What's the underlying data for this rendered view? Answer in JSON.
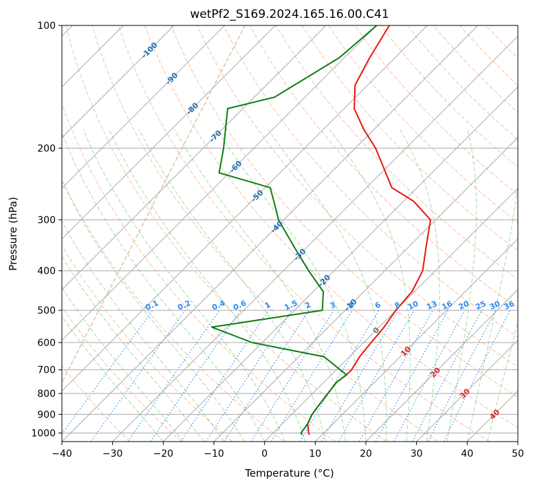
{
  "chart_data": {
    "type": "line",
    "title": "wetPf2_S169.2024.165.16.00.C41",
    "xlabel": "Temperature (°C)",
    "ylabel": "Pressure (hPa)",
    "xlim": [
      -40,
      50
    ],
    "ylim": [
      1050,
      100
    ],
    "y_scale": "log",
    "grid": true,
    "x_ticks": [
      -40,
      -30,
      -20,
      -10,
      0,
      10,
      20,
      30,
      40,
      50
    ],
    "x_tick_labels": [
      "−40",
      "−30",
      "−20",
      "−10",
      "0",
      "10",
      "20",
      "30",
      "40",
      "50"
    ],
    "y_ticks": [
      100,
      200,
      300,
      400,
      500,
      600,
      700,
      800,
      900,
      1000
    ],
    "y_tick_labels": [
      "100",
      "200",
      "300",
      "400",
      "500",
      "600",
      "700",
      "800",
      "900",
      "1000"
    ],
    "colors": {
      "temperature": "#e8140c",
      "dewpoint": "#0a7d12",
      "isotherm": "#a9a9a9",
      "dry_adiabat": "#f6a987",
      "moist_adiabat": "#8fd18f",
      "mixing_ratio": "#2b8cf0",
      "mixing_ratio_label": "#2b8cf0",
      "isotherm_label_cold": "#1f6fb5",
      "isotherm_label_warm": "#d7282f",
      "isotherm_label_zero": "#777777",
      "ice_curve": "#d8c3a3"
    },
    "series": [
      {
        "key": "temperature",
        "points": [
          [
            -57.5,
            100
          ],
          [
            -55,
            120
          ],
          [
            -52.5,
            140
          ],
          [
            -48,
            160
          ],
          [
            -42,
            180
          ],
          [
            -36,
            200
          ],
          [
            -25,
            250
          ],
          [
            -18,
            270
          ],
          [
            -11,
            300
          ],
          [
            -6.5,
            350
          ],
          [
            -2.5,
            400
          ],
          [
            -0.5,
            450
          ],
          [
            0,
            500
          ],
          [
            1,
            550
          ],
          [
            1.5,
            600
          ],
          [
            2,
            650
          ],
          [
            3,
            700
          ],
          [
            3,
            720
          ],
          [
            2.5,
            750
          ],
          [
            3,
            800
          ],
          [
            3.5,
            850
          ],
          [
            4,
            900
          ],
          [
            5,
            950
          ],
          [
            7,
            1000
          ],
          [
            7.5,
            1010
          ]
        ]
      },
      {
        "key": "dewpoint",
        "points": [
          [
            -60,
            100
          ],
          [
            -61,
            120
          ],
          [
            -66,
            150
          ],
          [
            -73,
            160
          ],
          [
            -66,
            200
          ],
          [
            -62,
            230
          ],
          [
            -49,
            250
          ],
          [
            -44,
            280
          ],
          [
            -41,
            300
          ],
          [
            -32.5,
            350
          ],
          [
            -25,
            400
          ],
          [
            -18,
            450
          ],
          [
            -14.5,
            500
          ],
          [
            -33,
            550
          ],
          [
            -22,
            600
          ],
          [
            -5,
            650
          ],
          [
            3,
            720
          ],
          [
            2.5,
            750
          ],
          [
            3,
            800
          ],
          [
            3.5,
            850
          ],
          [
            4,
            900
          ],
          [
            5,
            950
          ],
          [
            5.5,
            1000
          ],
          [
            6,
            1010
          ]
        ]
      }
    ],
    "isotherm_labels": [
      {
        "t": -100,
        "text": "-100",
        "p": 115
      },
      {
        "t": -90,
        "text": "-90",
        "p": 135
      },
      {
        "t": -80,
        "text": "-80",
        "p": 160
      },
      {
        "t": -70,
        "text": "-70",
        "p": 187
      },
      {
        "t": -60,
        "text": "-60",
        "p": 222
      },
      {
        "t": -50,
        "text": "-50",
        "p": 262
      },
      {
        "t": -40,
        "text": "-40",
        "p": 312
      },
      {
        "t": -30,
        "text": "-30",
        "p": 365
      },
      {
        "t": -20,
        "text": "-20",
        "p": 423
      },
      {
        "t": -10,
        "text": "-10",
        "p": 485
      },
      {
        "t": 0,
        "text": "0",
        "p": 560
      },
      {
        "t": 10,
        "text": "10",
        "p": 630
      },
      {
        "t": 20,
        "text": "20",
        "p": 710
      },
      {
        "t": 30,
        "text": "30",
        "p": 800
      },
      {
        "t": 40,
        "text": "40",
        "p": 900
      }
    ],
    "mixing_ratios": [
      {
        "w": 0.1,
        "text": "0.1"
      },
      {
        "w": 0.2,
        "text": "0.2"
      },
      {
        "w": 0.4,
        "text": "0.4"
      },
      {
        "w": 0.6,
        "text": "0.6"
      },
      {
        "w": 1,
        "text": "1"
      },
      {
        "w": 1.5,
        "text": "1.5"
      },
      {
        "w": 2,
        "text": "2"
      },
      {
        "w": 3,
        "text": "3"
      },
      {
        "w": 4,
        "text": "4"
      },
      {
        "w": 6,
        "text": "6"
      },
      {
        "w": 8,
        "text": "8"
      },
      {
        "w": 10,
        "text": "10"
      },
      {
        "w": 13,
        "text": "13"
      },
      {
        "w": 16,
        "text": "16"
      },
      {
        "w": 20,
        "text": "20"
      },
      {
        "w": 25,
        "text": "25"
      },
      {
        "w": 30,
        "text": "30"
      },
      {
        "w": 36,
        "text": "36"
      }
    ]
  }
}
